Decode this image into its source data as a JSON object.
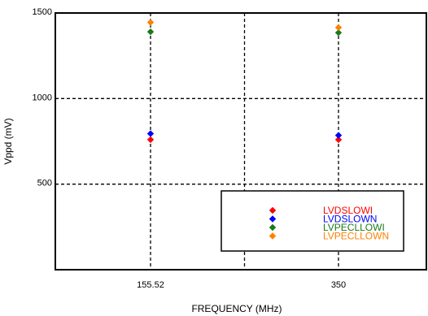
{
  "chart_data": {
    "type": "scatter",
    "title": "",
    "xlabel": "FREQUENCY (MHz)",
    "ylabel": "Vppd (mV)",
    "categories": [
      "155.52",
      "350"
    ],
    "ylim": [
      0,
      1500
    ],
    "yticks": [
      "500",
      "1000",
      "1500"
    ],
    "ytick_values": [
      500,
      1000,
      1500
    ],
    "grid": "dashed",
    "legend_position": "bottom-right",
    "marker": "diamond",
    "series": [
      {
        "name": "LVDSLOWI",
        "color": "#ff0000",
        "values": [
          760,
          760
        ]
      },
      {
        "name": "LVDSLOWN",
        "color": "#0000ff",
        "values": [
          795,
          785
        ]
      },
      {
        "name": "LVPECLLOWI",
        "color": "#1a7a1a",
        "values": [
          1390,
          1385
        ]
      },
      {
        "name": "LVPECLLOWN",
        "color": "#ff7f00",
        "values": [
          1445,
          1415
        ]
      }
    ]
  }
}
